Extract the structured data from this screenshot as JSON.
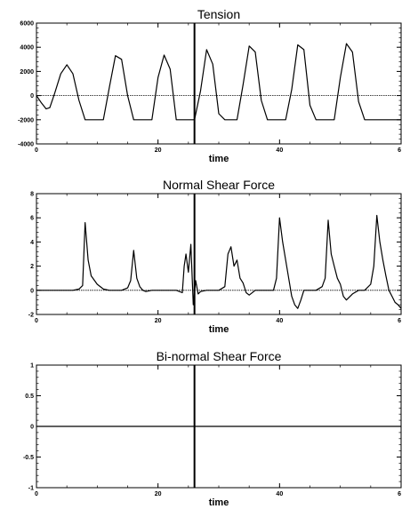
{
  "chart_data": [
    {
      "type": "line",
      "title": "Tension",
      "xlabel": "time",
      "ylabel": "",
      "xlim": [
        0,
        60
      ],
      "ylim": [
        -4000,
        6000
      ],
      "xticks": [
        "0",
        "20",
        "40",
        "6"
      ],
      "yticks": [
        "6000",
        "4000",
        "2000",
        "0",
        "-2000",
        "-4000"
      ],
      "ytick_values": [
        6000,
        4000,
        2000,
        0,
        -2000,
        -4000
      ],
      "marker_x": 26,
      "series": [
        {
          "x": [
            0,
            0.8,
            1.6,
            2.2,
            3,
            4,
            5,
            6,
            7,
            8,
            9,
            10,
            11,
            12,
            13,
            14,
            15,
            16,
            17,
            18,
            19,
            20,
            21,
            22,
            23,
            24,
            25,
            26,
            27,
            28,
            29,
            30,
            31,
            32,
            33,
            34,
            35,
            36,
            37,
            38,
            39,
            40,
            41,
            42,
            43,
            44,
            45,
            46,
            47,
            48,
            49,
            50,
            51,
            52,
            53,
            54,
            55,
            56,
            57,
            58,
            59,
            60
          ],
          "values": [
            0,
            -600,
            -1100,
            -1000,
            200,
            1800,
            2550,
            1800,
            -400,
            -2000,
            -2000,
            -2000,
            -2000,
            700,
            3300,
            3000,
            0,
            -2000,
            -2000,
            -2000,
            -2000,
            1500,
            3350,
            2200,
            -2000,
            -2000,
            -2000,
            -2000,
            400,
            3800,
            2600,
            -1500,
            -2000,
            -2000,
            -2000,
            900,
            4100,
            3600,
            -400,
            -2000,
            -2000,
            -2000,
            -2000,
            500,
            4200,
            3800,
            -800,
            -2000,
            -2000,
            -2000,
            -2000,
            1500,
            4300,
            3600,
            -500,
            -2000,
            -2000,
            -2000,
            -2000,
            -2000,
            -2000,
            -2000
          ]
        }
      ]
    },
    {
      "type": "line",
      "title": "Normal Shear Force",
      "xlabel": "time",
      "ylabel": "",
      "xlim": [
        0,
        60
      ],
      "ylim": [
        -2,
        8
      ],
      "xticks": [
        "0",
        "20",
        "40",
        "6"
      ],
      "yticks": [
        "8",
        "6",
        "4",
        "2",
        "0",
        "-2"
      ],
      "ytick_values": [
        8,
        6,
        4,
        2,
        0,
        -2
      ],
      "marker_x": 26,
      "series": [
        {
          "x": [
            0,
            2,
            4,
            6,
            7,
            7.6,
            8,
            8.5,
            9,
            10,
            11,
            12,
            13,
            14,
            15,
            15.5,
            16,
            16.5,
            17,
            17.5,
            18,
            19,
            20,
            21,
            22,
            23,
            24,
            24.3,
            24.6,
            25,
            25.4,
            25.8,
            26.2,
            26.6,
            27,
            28,
            29,
            30,
            31,
            31.5,
            32,
            32.5,
            33,
            33.5,
            34,
            34.5,
            35,
            36,
            37,
            38,
            39,
            39.5,
            40,
            40.5,
            41,
            41.5,
            42,
            42.5,
            43,
            43.5,
            44,
            45,
            46,
            47,
            47.5,
            48,
            48.5,
            49,
            49.5,
            50,
            50.5,
            51,
            52,
            53,
            54,
            55,
            55.5,
            56,
            56.5,
            57,
            57.5,
            58,
            58.5,
            59,
            59.5,
            60
          ],
          "values": [
            0,
            0,
            0,
            0,
            0.1,
            0.4,
            5.6,
            2.5,
            1.2,
            0.5,
            0.1,
            0,
            0,
            0,
            0.2,
            0.8,
            3.3,
            1.0,
            0.3,
            0,
            -0.1,
            0,
            0,
            0,
            0,
            0,
            -0.2,
            2.0,
            3.0,
            1.5,
            3.8,
            -1.2,
            0.8,
            -0.3,
            -0.1,
            0,
            0,
            0,
            0.3,
            3.0,
            3.6,
            2.0,
            2.5,
            1.0,
            0.6,
            -0.2,
            -0.4,
            0,
            0,
            0,
            0,
            1.0,
            6.0,
            4.0,
            2.5,
            1.0,
            -0.5,
            -1.2,
            -1.5,
            -0.8,
            0,
            0,
            0,
            0.3,
            1.0,
            5.8,
            3.0,
            2.0,
            1.0,
            0.5,
            -0.5,
            -0.8,
            -0.3,
            0,
            0,
            0.5,
            2.0,
            6.2,
            4.0,
            2.5,
            1.2,
            0,
            -0.5,
            -1.0,
            -1.2,
            -1.5
          ]
        }
      ]
    },
    {
      "type": "line",
      "title": "Bi-normal Shear Force",
      "xlabel": "time",
      "ylabel": "",
      "xlim": [
        0,
        60
      ],
      "ylim": [
        -1,
        1
      ],
      "xticks": [
        "0",
        "20",
        "40",
        "6"
      ],
      "yticks": [
        "1",
        "0.5",
        "0",
        "-0.5",
        "-1"
      ],
      "ytick_values": [
        1,
        0.5,
        0,
        -0.5,
        -1
      ],
      "marker_x": 26,
      "series": [
        {
          "x": [
            0,
            60
          ],
          "values": [
            0,
            0
          ]
        }
      ]
    }
  ]
}
